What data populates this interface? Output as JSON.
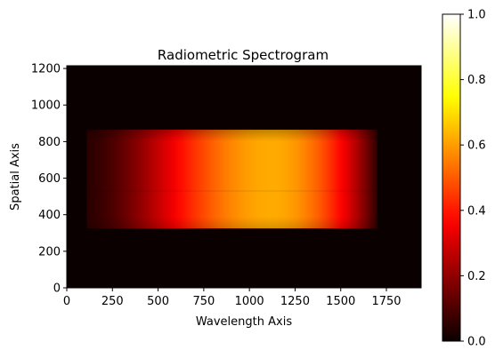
{
  "chart_data": {
    "type": "heatmap",
    "title": "Radiometric Spectrogram",
    "xlabel": "Wavelength Axis",
    "ylabel": "Spatial Axis",
    "xlim": [
      0,
      1940
    ],
    "ylim": [
      0,
      1215
    ],
    "xticks": [
      0,
      250,
      500,
      750,
      1000,
      1250,
      1500,
      1750
    ],
    "yticks": [
      0,
      200,
      400,
      600,
      800,
      1000,
      1200
    ],
    "colormap": "hot",
    "colorbar": {
      "range": [
        0,
        1
      ],
      "ticks": [
        "0.0",
        "0.2",
        "0.4",
        "0.6",
        "0.8",
        "1.0"
      ]
    },
    "bright_band": {
      "x_range": [
        110,
        1700
      ],
      "y_range": [
        325,
        865
      ],
      "peak_x": 1130,
      "peak_value": 0.62,
      "edge_value": 0.05,
      "seam_y": 530
    },
    "background_value": 0.0
  }
}
